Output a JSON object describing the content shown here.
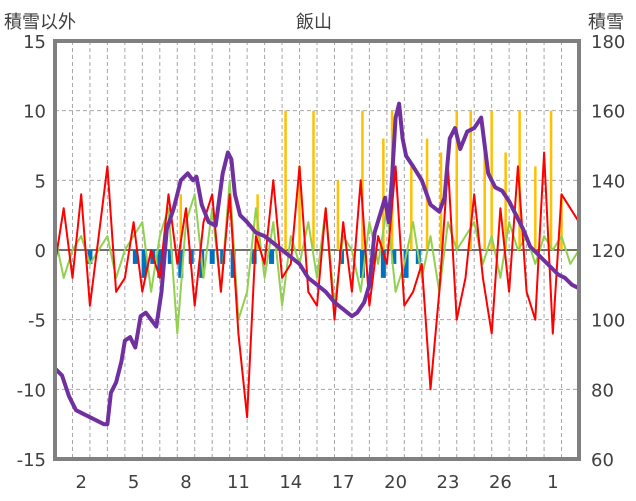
{
  "chart_data": {
    "type": "line",
    "title": "飯山",
    "ylabel_left": "積雪以外",
    "ylabel_right": "積雪",
    "ylim_left": [
      -15,
      15
    ],
    "ylim_right": [
      60,
      180
    ],
    "yticks_left": [
      "15",
      "10",
      "5",
      "0",
      "-5",
      "-10",
      "-15"
    ],
    "yticks_right": [
      "180",
      "160",
      "140",
      "120",
      "100",
      "80",
      "60"
    ],
    "x_ticks": [
      "2",
      "5",
      "8",
      "11",
      "14",
      "17",
      "20",
      "23",
      "26",
      "1"
    ],
    "x_range_days": [
      0,
      30
    ],
    "x_tick_positions": [
      1.5,
      4.5,
      7.5,
      10.5,
      13.5,
      16.5,
      19.5,
      22.5,
      25.5,
      28.5
    ],
    "grid": true,
    "colors": {
      "snow_depth": "#7030a0",
      "temperature": "#ff0000",
      "precipitation_green": "#92d050",
      "snowfall": "#ffc000",
      "blue_bars": "#0070c0"
    },
    "series": [
      {
        "key": "snow_depth",
        "axis": "right",
        "x": [
          0,
          0.4,
          0.8,
          1.2,
          1.6,
          2.0,
          2.4,
          2.8,
          3.0,
          3.2,
          3.5,
          3.8,
          4.0,
          4.3,
          4.6,
          4.9,
          5.2,
          5.5,
          5.8,
          6.1,
          6.4,
          6.8,
          7.2,
          7.6,
          7.9,
          8.1,
          8.4,
          8.8,
          9.2,
          9.6,
          9.9,
          10.1,
          10.3,
          10.6,
          11.0,
          11.5,
          12.0,
          12.5,
          13.0,
          13.5,
          14.0,
          14.5,
          15.0,
          15.5,
          16.0,
          16.5,
          17.0,
          17.3,
          17.7,
          18.0,
          18.3,
          18.6,
          18.9,
          19.1,
          19.3,
          19.5,
          19.7,
          19.9,
          20.1,
          20.5,
          21.0,
          21.5,
          22.0,
          22.3,
          22.6,
          22.9,
          23.2,
          23.6,
          24.0,
          24.4,
          24.8,
          25.2,
          25.6,
          26.0,
          26.4,
          26.8,
          27.2,
          27.6,
          28.0,
          28.4,
          28.8,
          29.2,
          29.6,
          30.0
        ],
        "values": [
          86,
          84,
          78,
          74,
          73,
          72,
          71,
          70,
          70,
          79,
          82,
          88,
          94,
          95,
          92,
          101,
          102,
          100,
          98,
          108,
          126,
          132,
          140,
          142,
          140,
          141,
          133,
          128,
          127,
          142,
          148,
          146,
          136,
          130,
          128,
          125,
          124,
          122,
          120,
          118,
          116,
          112,
          110,
          108,
          105,
          103,
          101,
          102,
          105,
          110,
          125,
          130,
          135,
          128,
          141,
          158,
          162,
          152,
          147,
          144,
          140,
          133,
          131,
          135,
          152,
          155,
          149,
          154,
          155,
          158,
          142,
          138,
          137,
          134,
          130,
          126,
          121,
          119,
          117,
          115,
          113,
          112,
          110,
          109
        ]
      },
      {
        "key": "temperature",
        "axis": "left",
        "x": [
          0,
          0.5,
          1.0,
          1.5,
          2.0,
          2.5,
          3.0,
          3.5,
          4.0,
          4.5,
          5.0,
          5.5,
          6.0,
          6.5,
          7.0,
          7.5,
          8.0,
          8.5,
          9.0,
          9.5,
          10.0,
          10.5,
          11.0,
          11.5,
          12.0,
          12.5,
          13.0,
          13.5,
          14.0,
          14.5,
          15.0,
          15.5,
          16.0,
          16.5,
          17.0,
          17.5,
          18.0,
          18.5,
          19.0,
          19.5,
          20.0,
          20.5,
          21.0,
          21.5,
          22.0,
          22.5,
          23.0,
          23.5,
          24.0,
          24.5,
          25.0,
          25.5,
          26.0,
          26.5,
          27.0,
          27.5,
          28.0,
          28.5,
          29.0,
          29.5,
          30.0
        ],
        "values": [
          -1,
          3,
          -2,
          4,
          -4,
          1,
          6,
          -3,
          -2,
          2,
          -3,
          0,
          -2,
          4,
          -1,
          3,
          -4,
          2,
          4,
          -3,
          4,
          -6,
          -12,
          1,
          -1,
          5,
          -2,
          -1,
          6,
          -3,
          -4,
          3,
          -5,
          2,
          -3,
          5,
          -4,
          1,
          -1,
          6,
          -4,
          -3,
          -1,
          -10,
          -3,
          6,
          -5,
          -2,
          4,
          -2,
          -6,
          3,
          -3,
          6,
          -3,
          -5,
          7,
          -6,
          4,
          3,
          2
        ]
      },
      {
        "key": "precipitation_green",
        "axis": "left",
        "x": [
          0,
          0.5,
          1.0,
          1.5,
          2.0,
          2.5,
          3.0,
          3.5,
          4.0,
          4.5,
          5.0,
          5.5,
          6.0,
          6.5,
          7.0,
          7.5,
          8.0,
          8.5,
          9.0,
          9.5,
          10.0,
          10.5,
          11.0,
          11.5,
          12.0,
          12.5,
          13.0,
          13.5,
          14.0,
          14.5,
          15.0,
          15.5,
          16.0,
          16.5,
          17.0,
          17.5,
          18.0,
          18.5,
          19.0,
          19.5,
          20.0,
          20.5,
          21.0,
          21.5,
          22.0,
          22.5,
          23.0,
          23.5,
          24.0,
          24.5,
          25.0,
          25.5,
          26.0,
          26.5,
          27.0,
          27.5,
          28.0,
          28.5,
          29.0,
          29.5,
          30.0
        ],
        "values": [
          1,
          -2,
          0,
          1,
          -1,
          0,
          1,
          -2,
          0,
          1,
          2,
          -3,
          1,
          3,
          -6,
          2,
          4,
          -2,
          3,
          -3,
          5,
          -5,
          -3,
          3,
          -2,
          2,
          -4,
          1,
          -1,
          2,
          -2,
          3,
          -4,
          1,
          0,
          -3,
          2,
          -1,
          3,
          -3,
          -1,
          2,
          -2,
          1,
          -3,
          2,
          0,
          1,
          2,
          -1,
          1,
          -2,
          2,
          0,
          1,
          -1,
          1,
          0,
          1,
          -1,
          0
        ]
      },
      {
        "key": "snowfall",
        "axis": "left",
        "type": "bar",
        "x": [
          7.2,
          11.6,
          13.2,
          14.0,
          14.8,
          16.2,
          17.6,
          18.8,
          19.3,
          20.4,
          21.3,
          22.1,
          23.0,
          23.8,
          24.6,
          25.0,
          25.8,
          26.6,
          27.5,
          28.4,
          29.0
        ],
        "values": [
          4,
          4,
          10,
          6,
          10,
          5,
          10,
          8,
          10,
          6,
          8,
          7,
          10,
          10,
          8,
          10,
          7,
          10,
          6,
          10,
          4
        ]
      },
      {
        "key": "blue_bars",
        "axis": "left",
        "type": "bar",
        "x": [
          2.0,
          4.6,
          5.1,
          5.6,
          6.0,
          6.6,
          7.2,
          7.8,
          8.4,
          9.0,
          9.6,
          10.2,
          11.4,
          12.4,
          16.4,
          17.6,
          18.2,
          18.8,
          19.4,
          20.1,
          20.8
        ],
        "values": [
          -1,
          -1,
          -2,
          -1,
          -2,
          -1,
          -2,
          -1,
          -2,
          -1,
          -1,
          -2,
          -1,
          -1,
          -1,
          -2,
          -1,
          -2,
          -1,
          -2,
          -1
        ]
      }
    ]
  }
}
